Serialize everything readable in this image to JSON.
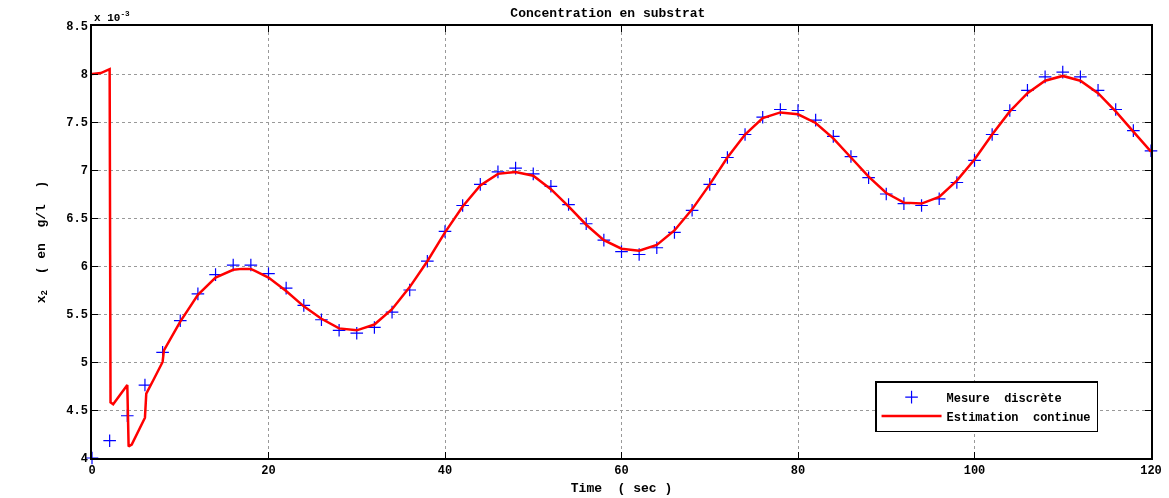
{
  "chart_data": {
    "type": "line",
    "title": "Concentration en substrat",
    "xlabel": "Time  ( sec )",
    "ylabel": "x$_{2}$  ( en  g/l  )",
    "annotations": [
      "x 10$^{-3}$"
    ],
    "xlim": [
      0,
      120
    ],
    "xticks": [
      0,
      20,
      40,
      60,
      80,
      100,
      120
    ],
    "ylim": [
      4,
      8.5
    ],
    "yticks": [
      4,
      4.5,
      5,
      5.5,
      6,
      6.5,
      7,
      7.5,
      8,
      8.5
    ],
    "grid": true,
    "legend": "bottom right",
    "series": [
      {
        "name": "Mesure  discrète",
        "type": "scatter",
        "marker": "cross",
        "color": "#0000ff",
        "x": [
          0,
          2,
          4,
          6,
          8,
          10,
          12,
          14,
          16,
          18,
          20,
          22,
          24,
          26,
          28,
          30,
          32,
          34,
          36,
          38,
          40,
          42,
          44,
          46,
          48,
          50,
          52,
          54,
          56,
          58,
          60,
          62,
          64,
          66,
          68,
          70,
          72,
          74,
          76,
          78,
          80,
          82,
          84,
          86,
          88,
          90,
          92,
          94,
          96,
          98,
          100,
          102,
          104,
          106,
          108,
          110,
          112,
          114,
          116,
          118,
          120
        ],
        "values": [
          4.0,
          4.18,
          4.44,
          4.76,
          5.1,
          5.43,
          5.71,
          5.91,
          6.01,
          6.01,
          5.92,
          5.77,
          5.59,
          5.44,
          5.33,
          5.3,
          5.36,
          5.52,
          5.75,
          6.05,
          6.36,
          6.63,
          6.85,
          6.98,
          7.02,
          6.96,
          6.83,
          6.64,
          6.44,
          6.27,
          6.15,
          6.12,
          6.19,
          6.35,
          6.58,
          6.85,
          7.13,
          7.37,
          7.55,
          7.63,
          7.62,
          7.52,
          7.35,
          7.14,
          6.92,
          6.75,
          6.65,
          6.63,
          6.7,
          6.87,
          7.1,
          7.37,
          7.62,
          7.83,
          7.97,
          8.02,
          7.97,
          7.83,
          7.63,
          7.41,
          7.2
        ]
      },
      {
        "name": "Estimation  continue",
        "type": "line",
        "line_style": "solid",
        "color": "#ff0000",
        "x": [
          0,
          1,
          2,
          2.1,
          2.4,
          4,
          4.15,
          4.5,
          6,
          6.15,
          7,
          8,
          8.15,
          10,
          12,
          14,
          16,
          17,
          18,
          20,
          22,
          24,
          26,
          28,
          30,
          32,
          34,
          36,
          38,
          40,
          42,
          44,
          46,
          48,
          50,
          52,
          54,
          56,
          58,
          60,
          62,
          64,
          66,
          68,
          70,
          72,
          74,
          76,
          78,
          80,
          82,
          84,
          86,
          88,
          90,
          92,
          94,
          96,
          98,
          100,
          102,
          104,
          106,
          108,
          110,
          112,
          114,
          116,
          118,
          120
        ],
        "values": [
          8.0,
          8.01,
          8.05,
          4.58,
          4.56,
          4.76,
          4.12,
          4.14,
          4.42,
          4.67,
          4.82,
          5.0,
          5.12,
          5.42,
          5.7,
          5.88,
          5.96,
          5.97,
          5.97,
          5.88,
          5.74,
          5.58,
          5.45,
          5.35,
          5.33,
          5.39,
          5.55,
          5.78,
          6.05,
          6.35,
          6.62,
          6.84,
          6.96,
          6.98,
          6.94,
          6.8,
          6.62,
          6.43,
          6.27,
          6.18,
          6.16,
          6.22,
          6.37,
          6.59,
          6.85,
          7.13,
          7.37,
          7.54,
          7.6,
          7.58,
          7.49,
          7.33,
          7.13,
          6.93,
          6.76,
          6.66,
          6.65,
          6.72,
          6.89,
          7.11,
          7.37,
          7.61,
          7.8,
          7.93,
          7.98,
          7.93,
          7.8,
          7.61,
          7.4,
          7.19
        ]
      }
    ]
  }
}
